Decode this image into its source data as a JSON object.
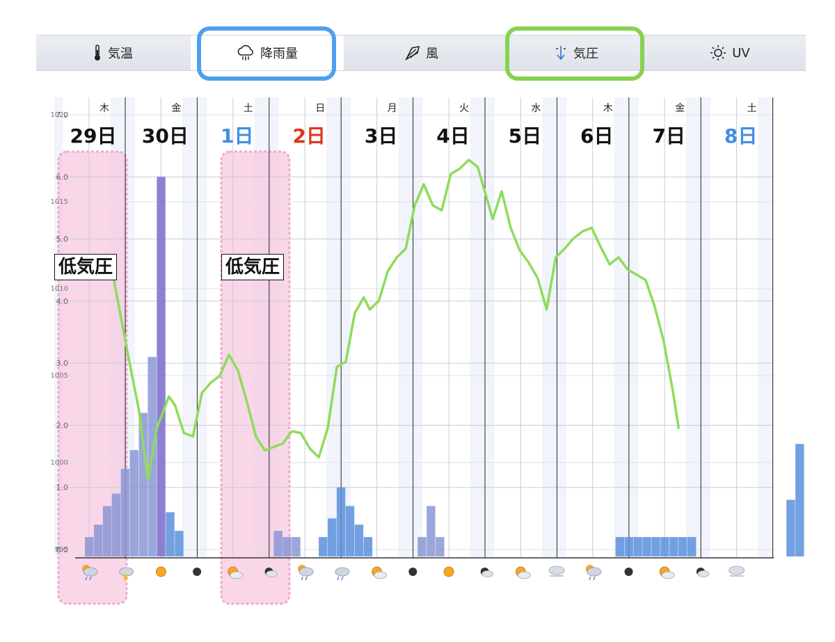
{
  "tabs": [
    {
      "label": "気温",
      "icon": "thermometer-icon"
    },
    {
      "label": "降雨量",
      "icon": "rain-cloud-icon",
      "active": true
    },
    {
      "label": "風",
      "icon": "wind-icon"
    },
    {
      "label": "気圧",
      "icon": "pressure-icon"
    },
    {
      "label": "UV",
      "icon": "sun-icon"
    }
  ],
  "annotations": {
    "callout_1": "低気圧",
    "callout_2": "低気圧",
    "highlight_colors": {
      "tab_rain": "#4d9ff0",
      "tab_pressure": "#86d34f",
      "low_pressure_band": "#f6c6de"
    }
  },
  "chart_data": {
    "type": "bar",
    "grid": true,
    "weekdays": [
      "木",
      "金",
      "土",
      "日",
      "月",
      "火",
      "水",
      "木",
      "金",
      "土"
    ],
    "dates": [
      {
        "label": "29日",
        "color": "#111111"
      },
      {
        "label": "30日",
        "color": "#111111"
      },
      {
        "label": "1日",
        "color": "#3f8ee6"
      },
      {
        "label": "2日",
        "color": "#d9381e"
      },
      {
        "label": "3日",
        "color": "#111111"
      },
      {
        "label": "4日",
        "color": "#111111"
      },
      {
        "label": "5日",
        "color": "#111111"
      },
      {
        "label": "6日",
        "color": "#111111"
      },
      {
        "label": "7日",
        "color": "#111111"
      },
      {
        "label": "8日",
        "color": "#3f8ee6"
      }
    ],
    "precip_axis": {
      "ticks": [
        "0.0",
        "1.0",
        "2.0",
        "3.0",
        "4.0",
        "5.0",
        "6.0",
        "7.0"
      ],
      "ylim": [
        0,
        7
      ]
    },
    "pressure_axis": {
      "ticks": [
        "995",
        "1000",
        "1005",
        "1010",
        "1015",
        "1020"
      ],
      "ylim": [
        995,
        1020
      ]
    },
    "precipitation": {
      "color_rain": "#8a96d4",
      "color_heavy": "#7a6bcc",
      "color_blue": "#5b8fdc",
      "x_hours": [
        0,
        3,
        6,
        9,
        12,
        15,
        18,
        21,
        24,
        27,
        30,
        33,
        36,
        39,
        42,
        45,
        48,
        51,
        54,
        57,
        60,
        63,
        66,
        69,
        72,
        75,
        78,
        81,
        84,
        87,
        90,
        93,
        96,
        99,
        102,
        105,
        108,
        111,
        114,
        117,
        120,
        123,
        126,
        129,
        132,
        135,
        138,
        141,
        144,
        147,
        150,
        153,
        156,
        159,
        162,
        165,
        168,
        171,
        174,
        177,
        180,
        183,
        186,
        189,
        192,
        195,
        198,
        201,
        204,
        207,
        210,
        213,
        216,
        219,
        222,
        225,
        228,
        231,
        234,
        237
      ],
      "values": [
        0.2,
        0.4,
        0.7,
        0.9,
        1.3,
        1.6,
        2.2,
        3.1,
        6.0,
        0.6,
        0.3,
        0.0,
        0.0,
        0.0,
        0.0,
        0.0,
        0.0,
        0.0,
        0.0,
        0.0,
        0.0,
        0.3,
        0.2,
        0.2,
        0.0,
        0.0,
        0.2,
        0.5,
        1.0,
        0.7,
        0.4,
        0.2,
        0.0,
        0.0,
        0.0,
        0.0,
        0.0,
        0.2,
        0.7,
        0.2,
        0.0,
        0.0,
        0.0,
        0.0,
        0.0,
        0.0,
        0.0,
        0.0,
        0.0,
        0.0,
        0.0,
        0.0,
        0.0,
        0.0,
        0.0,
        0.0,
        0.0,
        0.0,
        0.0,
        0.2,
        0.2,
        0.2,
        0.2,
        0.2,
        0.2,
        0.2,
        0.2,
        0.2,
        0.0,
        0.0,
        0.0,
        0.0,
        0.0,
        0.0,
        0.0,
        0.0,
        0.0,
        0.0,
        0.8,
        1.7
      ]
    },
    "pressure_line": {
      "color": "#8edc5a",
      "points": [
        [
          0,
          1011.3
        ],
        [
          3,
          1011.1
        ],
        [
          8,
          1006.5
        ],
        [
          12,
          1003.0
        ],
        [
          15,
          999.0
        ],
        [
          18,
          1002.0
        ],
        [
          22,
          1003.8
        ],
        [
          24,
          1003.3
        ],
        [
          27,
          1001.7
        ],
        [
          30,
          1001.5
        ],
        [
          33,
          1004.0
        ],
        [
          36,
          1004.6
        ],
        [
          39,
          1005.0
        ],
        [
          42,
          1006.2
        ],
        [
          45,
          1005.3
        ],
        [
          48,
          1003.5
        ],
        [
          51,
          1001.5
        ],
        [
          54,
          1000.7
        ],
        [
          57,
          1000.9
        ],
        [
          60,
          1001.1
        ],
        [
          63,
          1001.8
        ],
        [
          66,
          1001.7
        ],
        [
          69,
          1000.8
        ],
        [
          72,
          1000.3
        ],
        [
          75,
          1002.0
        ],
        [
          78,
          1005.5
        ],
        [
          81,
          1005.8
        ],
        [
          84,
          1008.6
        ],
        [
          87,
          1009.5
        ],
        [
          89,
          1008.8
        ],
        [
          92,
          1009.3
        ],
        [
          95,
          1011.0
        ],
        [
          98,
          1011.8
        ],
        [
          101,
          1012.3
        ],
        [
          104,
          1014.8
        ],
        [
          107,
          1016.0
        ],
        [
          110,
          1014.8
        ],
        [
          113,
          1014.5
        ],
        [
          116,
          1016.6
        ],
        [
          119,
          1016.9
        ],
        [
          122,
          1017.4
        ],
        [
          125,
          1017.0
        ],
        [
          128,
          1015.2
        ],
        [
          130,
          1014.0
        ],
        [
          133,
          1015.6
        ],
        [
          136,
          1013.5
        ],
        [
          139,
          1012.2
        ],
        [
          142,
          1011.5
        ],
        [
          145,
          1010.6
        ],
        [
          148,
          1008.8
        ],
        [
          151,
          1011.8
        ],
        [
          154,
          1012.3
        ],
        [
          157,
          1012.9
        ],
        [
          160,
          1013.3
        ],
        [
          163,
          1013.5
        ],
        [
          166,
          1012.4
        ],
        [
          169,
          1011.4
        ],
        [
          172,
          1011.8
        ],
        [
          175,
          1011.1
        ],
        [
          178,
          1010.8
        ],
        [
          181,
          1010.5
        ],
        [
          184,
          1009.0
        ],
        [
          187,
          1007.0
        ],
        [
          190,
          1004.2
        ],
        [
          192,
          1002.0
        ]
      ]
    },
    "weather_icons": [
      "rain-sun-icon",
      "thunderstorm-icon",
      "sun-icon",
      "moon-icon",
      "sun-cloud-icon",
      "moon-cloud-icon",
      "rain-sun-icon",
      "rain-cloud-icon",
      "sun-cloud-icon",
      "moon-icon",
      "sun-icon",
      "moon-cloud-icon",
      "sun-cloud-icon",
      "fog-icon",
      "rain-sun-icon",
      "moon-icon",
      "sun-cloud-icon",
      "moon-cloud-icon",
      "fog-icon"
    ]
  }
}
